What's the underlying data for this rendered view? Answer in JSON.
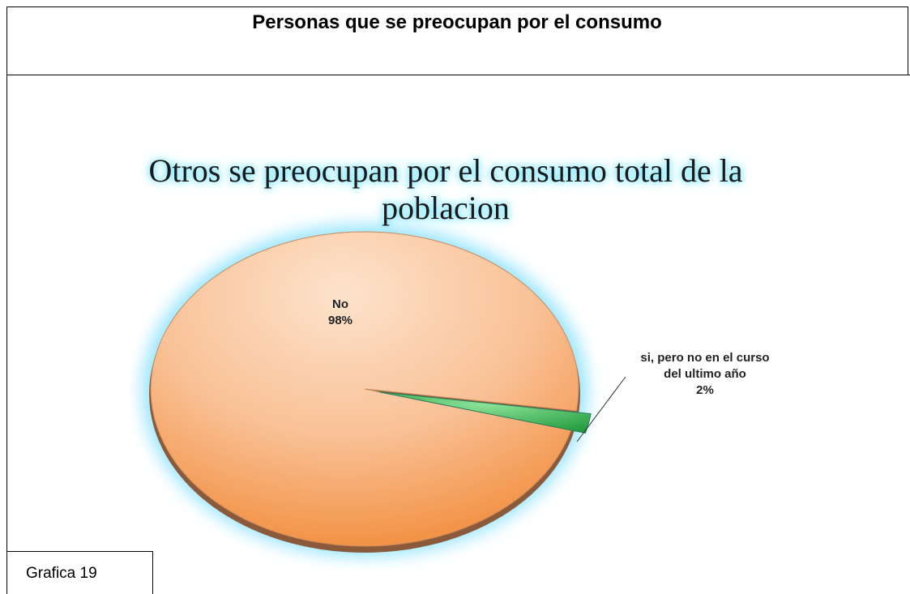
{
  "header": {
    "title": "Personas que se preocupan por el consumo"
  },
  "caption": "Grafica 19",
  "chart_data": {
    "type": "pie",
    "title": "Otros se preocupan por el consumo total de la poblacion",
    "categories": [
      "No",
      "si, pero no en el curso del ultimo año"
    ],
    "values": [
      98,
      2
    ],
    "value_labels": [
      "98%",
      "2%"
    ],
    "colors": [
      "#f5a56a",
      "#3fbf55"
    ]
  }
}
